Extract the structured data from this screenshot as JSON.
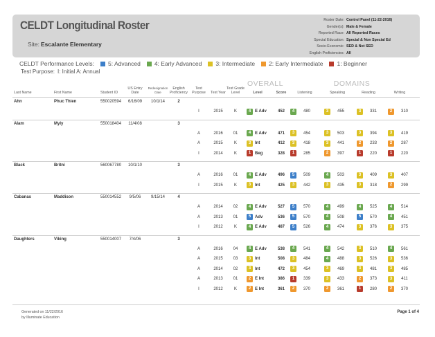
{
  "header": {
    "title": "CELDT Longitudinal Roster",
    "site_label": "Site:",
    "site": "Escalante Elementary",
    "filters": [
      {
        "label": "Roster Date:",
        "value": "Control Panel (11-22-2016)"
      },
      {
        "label": "Gender(s):",
        "value": "Male & Female"
      },
      {
        "label": "Reported Race:",
        "value": "All Reported Races"
      },
      {
        "label": "Special Education:",
        "value": "Special & Non Special Ed"
      },
      {
        "label": "Socio-Economic:",
        "value": "SED & Not SED"
      },
      {
        "label": "English Proficiencies:",
        "value": "All"
      }
    ]
  },
  "legend": {
    "label": "CELDT Performance Levels:",
    "levels": [
      {
        "label": "5: Advanced",
        "color": "#3d7fc9"
      },
      {
        "label": "4: Early Advanced",
        "color": "#6aa84f"
      },
      {
        "label": "3: Intermediate",
        "color": "#dcc125"
      },
      {
        "label": "2: Early Intermediate",
        "color": "#ef982e"
      },
      {
        "label": "1: Beginner",
        "color": "#b83b2c"
      }
    ],
    "test_purpose_label": "Test Purpose:",
    "test_purpose": "I: Initial A: Annual"
  },
  "table": {
    "group_headers": {
      "overall": "OVERALL",
      "domains": "DOMAINS"
    },
    "columns": [
      "Last Name",
      "First Name",
      "Student ID",
      "US Entry Date",
      "Redesignation Date",
      "English Proficiency",
      "Test Purpose",
      "Test Year",
      "Test Grade Level",
      "Level",
      "Score",
      "Listening",
      "Speaking",
      "Reading",
      "Writing"
    ],
    "students": [
      {
        "last_name": "Ahn",
        "first_name": "Phuc Thien",
        "student_id": "550020594",
        "us_entry_date": "6/16/09",
        "redesignation_date": "10/1/14",
        "english_proficiency": 2,
        "tests": [
          {
            "purpose": "I",
            "year": 2015,
            "grade": "K",
            "level": 4,
            "level_label": "E Adv",
            "score": 452,
            "listening": [
              4,
              480
            ],
            "speaking": [
              3,
              455
            ],
            "reading": [
              3,
              331
            ],
            "writing": [
              2,
              310
            ]
          }
        ]
      },
      {
        "last_name": "Alam",
        "first_name": "Myly",
        "student_id": "550018404",
        "us_entry_date": "11/4/08",
        "english_proficiency": 3,
        "tests": [
          {
            "purpose": "A",
            "year": 2016,
            "grade": "01",
            "level": 4,
            "level_label": "E Adv",
            "score": 471,
            "listening": [
              3,
              454
            ],
            "speaking": [
              3,
              503
            ],
            "reading": [
              3,
              394
            ],
            "writing": [
              3,
              419
            ]
          },
          {
            "purpose": "A",
            "year": 2015,
            "grade": "K",
            "level": 3,
            "level_label": "Int",
            "score": 412,
            "listening": [
              3,
              418
            ],
            "speaking": [
              3,
              441
            ],
            "reading": [
              2,
              233
            ],
            "writing": [
              2,
              287
            ]
          },
          {
            "purpose": "I",
            "year": 2014,
            "grade": "K",
            "level": 1,
            "level_label": "Beg",
            "score": 328,
            "listening": [
              1,
              285
            ],
            "speaking": [
              2,
              397
            ],
            "reading": [
              1,
              220
            ],
            "writing": [
              1,
              220
            ]
          }
        ]
      },
      {
        "last_name": "Black",
        "first_name": "Britni",
        "student_id": "560067780",
        "us_entry_date": "10/1/10",
        "english_proficiency": 3,
        "tests": [
          {
            "purpose": "A",
            "year": 2016,
            "grade": "01",
            "level": 4,
            "level_label": "E Adv",
            "score": 496,
            "listening": [
              5,
              509
            ],
            "speaking": [
              4,
              503
            ],
            "reading": [
              3,
              409
            ],
            "writing": [
              3,
              407
            ]
          },
          {
            "purpose": "I",
            "year": 2015,
            "grade": "K",
            "level": 3,
            "level_label": "Int",
            "score": 425,
            "listening": [
              3,
              442
            ],
            "speaking": [
              3,
              435
            ],
            "reading": [
              3,
              318
            ],
            "writing": [
              2,
              299
            ]
          }
        ]
      },
      {
        "last_name": "Cabanas",
        "first_name": "Maddison",
        "student_id": "550014552",
        "us_entry_date": "9/5/06",
        "redesignation_date": "9/15/14",
        "english_proficiency": 4,
        "tests": [
          {
            "purpose": "A",
            "year": 2014,
            "grade": "02",
            "level": 4,
            "level_label": "E Adv",
            "score": 527,
            "listening": [
              5,
              570
            ],
            "speaking": [
              4,
              499
            ],
            "reading": [
              4,
              525
            ],
            "writing": [
              4,
              514
            ]
          },
          {
            "purpose": "A",
            "year": 2013,
            "grade": "01",
            "level": 5,
            "level_label": "Adv",
            "score": 536,
            "listening": [
              5,
              570
            ],
            "speaking": [
              4,
              508
            ],
            "reading": [
              5,
              570
            ],
            "writing": [
              4,
              451
            ]
          },
          {
            "purpose": "I",
            "year": 2012,
            "grade": "K",
            "level": 4,
            "level_label": "E Adv",
            "score": 487,
            "listening": [
              5,
              526
            ],
            "speaking": [
              4,
              474
            ],
            "reading": [
              3,
              376
            ],
            "writing": [
              3,
              375
            ]
          }
        ]
      },
      {
        "last_name": "Daughters",
        "first_name": "Viking",
        "student_id": "550014007",
        "us_entry_date": "7/4/06",
        "english_proficiency": 3,
        "tests": [
          {
            "purpose": "A",
            "year": 2016,
            "grade": "04",
            "level": 4,
            "level_label": "E Adv",
            "score": 538,
            "listening": [
              4,
              541
            ],
            "speaking": [
              4,
              542
            ],
            "reading": [
              3,
              510
            ],
            "writing": [
              4,
              561
            ]
          },
          {
            "purpose": "A",
            "year": 2015,
            "grade": "03",
            "level": 3,
            "level_label": "Int",
            "score": 508,
            "listening": [
              3,
              484
            ],
            "speaking": [
              4,
              488
            ],
            "reading": [
              3,
              526
            ],
            "writing": [
              3,
              536
            ]
          },
          {
            "purpose": "A",
            "year": 2014,
            "grade": "02",
            "level": 3,
            "level_label": "Int",
            "score": 472,
            "listening": [
              3,
              454
            ],
            "speaking": [
              3,
              469
            ],
            "reading": [
              3,
              481
            ],
            "writing": [
              3,
              485
            ]
          },
          {
            "purpose": "A",
            "year": 2013,
            "grade": "01",
            "level": 2,
            "level_label": "E Int",
            "score": 386,
            "listening": [
              1,
              339
            ],
            "speaking": [
              3,
              433
            ],
            "reading": [
              2,
              373
            ],
            "writing": [
              3,
              411
            ]
          },
          {
            "purpose": "I",
            "year": 2012,
            "grade": "K",
            "level": 2,
            "level_label": "E Int",
            "score": 361,
            "listening": [
              2,
              370
            ],
            "speaking": [
              2,
              361
            ],
            "reading": [
              1,
              280
            ],
            "writing": [
              2,
              370
            ]
          }
        ]
      }
    ]
  },
  "footer": {
    "generated": "Generated on 11/22/2016",
    "by": "by Illuminate Education",
    "page": "Page 1 of 4"
  }
}
